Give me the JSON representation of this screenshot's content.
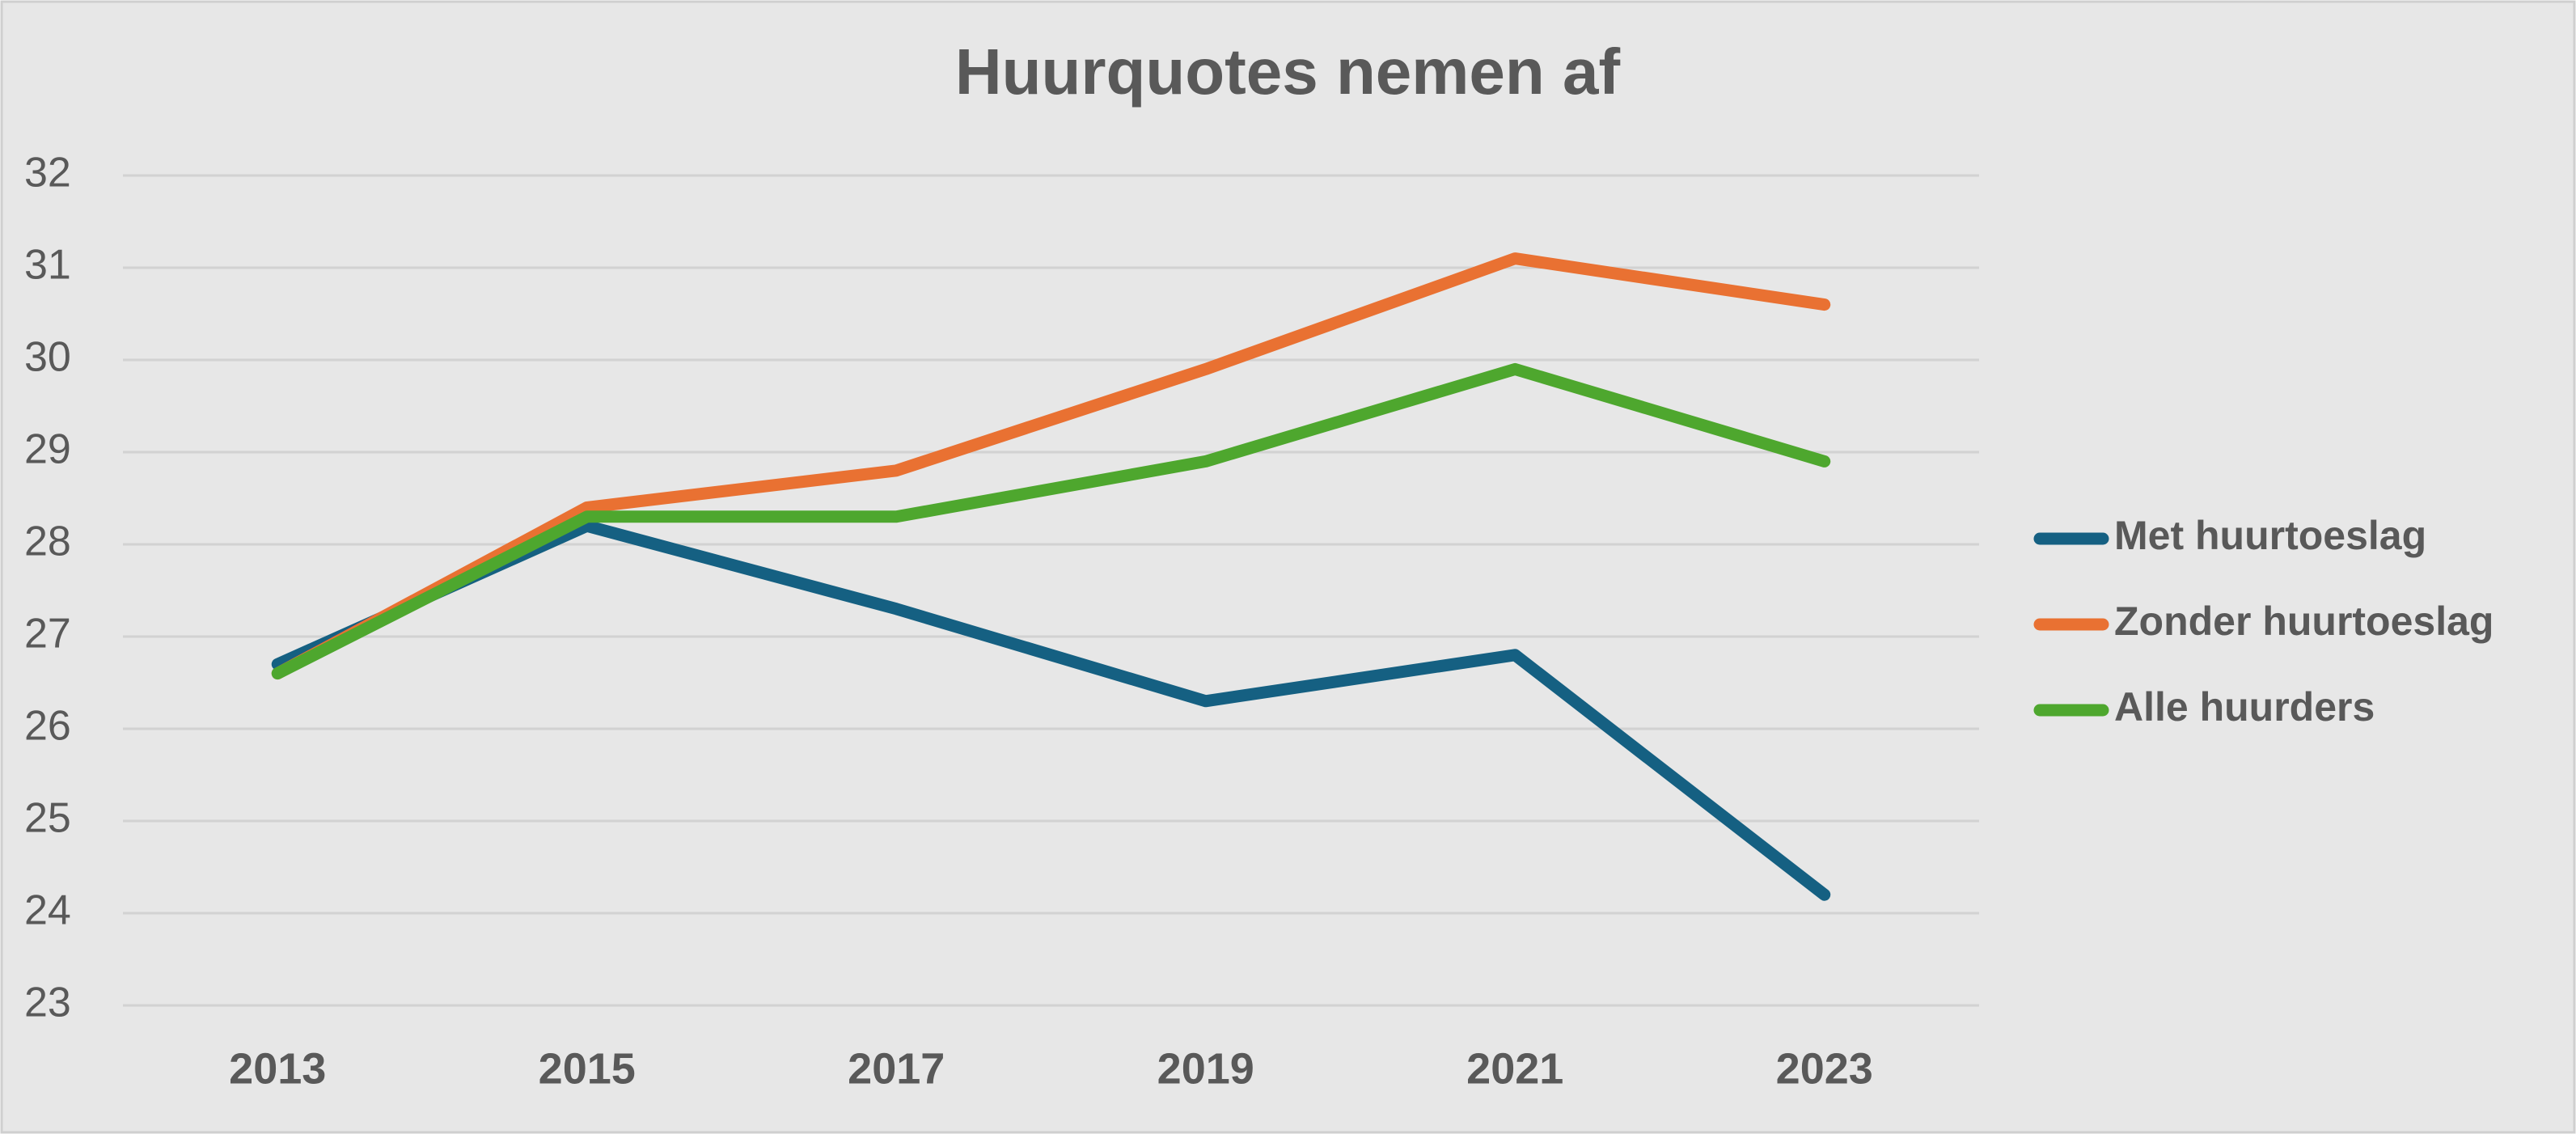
{
  "chart_data": {
    "type": "line",
    "title": "Huurquotes nemen af",
    "categories": [
      "2013",
      "2015",
      "2017",
      "2019",
      "2021",
      "2023"
    ],
    "series": [
      {
        "name": "Met huurtoeslag",
        "color": "#156082",
        "values": [
          26.7,
          28.2,
          27.3,
          26.3,
          26.8,
          24.2
        ]
      },
      {
        "name": "Zonder huurtoeslag",
        "color": "#e97132",
        "values": [
          26.6,
          28.4,
          28.8,
          29.9,
          31.1,
          30.6
        ]
      },
      {
        "name": "Alle huurders",
        "color": "#4ea72e",
        "values": [
          26.6,
          28.3,
          28.3,
          28.9,
          29.9,
          28.9
        ]
      }
    ],
    "ylim": [
      23,
      32
    ],
    "yticks": [
      23,
      24,
      25,
      26,
      27,
      28,
      29,
      30,
      31,
      32
    ],
    "grid": true,
    "legend": "right"
  }
}
